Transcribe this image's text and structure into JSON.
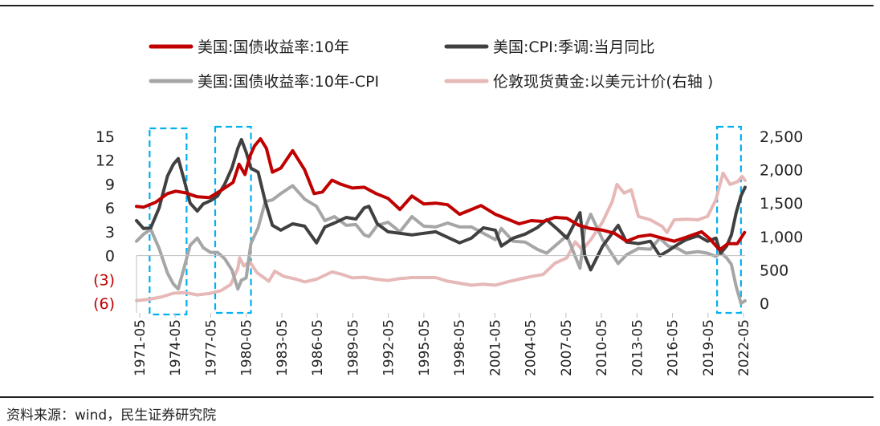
{
  "source": "资料来源：wind，民生证券研究院",
  "chart_data": {
    "type": "line",
    "legend": [
      {
        "label": "美国:国债收益率:10年",
        "color": "#c00000"
      },
      {
        "label": "美国:CPI:季调:当月同比",
        "color": "#404040"
      },
      {
        "label": "美国:国债收益率:10年-CPI",
        "color": "#a6a6a6"
      },
      {
        "label": "伦敦现货黄金:以美元计价(右轴 )",
        "color": "#e6b8b7"
      }
    ],
    "x_ticks": [
      "1971-05",
      "1974-05",
      "1977-05",
      "1980-05",
      "1983-05",
      "1986-05",
      "1989-05",
      "1992-05",
      "1995-05",
      "1998-05",
      "2001-05",
      "2004-05",
      "2007-05",
      "2010-05",
      "2013-05",
      "2016-05",
      "2019-05",
      "2022-05"
    ],
    "y_left": {
      "min": -6,
      "max": 15,
      "ticks": [
        "15",
        "12",
        "9",
        "6",
        "3",
        "0",
        "(3)",
        "(6)"
      ],
      "tick_values": [
        15,
        12,
        9,
        6,
        3,
        0,
        -3,
        -6
      ]
    },
    "y_right": {
      "min": 0,
      "max": 2500,
      "ticks": [
        "2,500",
        "2,000",
        "1,500",
        "1,000",
        "500",
        "0"
      ],
      "tick_values": [
        2500,
        2000,
        1500,
        1000,
        500,
        0
      ]
    },
    "highlight_ranges": [
      [
        1972.5,
        1975.6
      ],
      [
        1978.0,
        1981.0
      ],
      [
        2020.1,
        2022.1
      ]
    ],
    "series": [
      {
        "name": "美国:国债收益率:10年",
        "axis": "left",
        "color": "#c00000",
        "x": [
          1971.4,
          1972,
          1973,
          1974,
          1974.7,
          1975.5,
          1976.5,
          1977.5,
          1978.5,
          1979.5,
          1980.0,
          1980.5,
          1980.9,
          1981.3,
          1981.8,
          1982.3,
          1982.8,
          1983.5,
          1984.5,
          1985.5,
          1986.3,
          1987.0,
          1987.8,
          1988.5,
          1989.5,
          1990.5,
          1991.5,
          1992.5,
          1993.5,
          1994.5,
          1995.5,
          1996.5,
          1997.5,
          1998.5,
          1999.5,
          2000.3,
          2001.5,
          2002.5,
          2003.5,
          2004.5,
          2005.5,
          2006.5,
          2007.5,
          2008.5,
          2009.5,
          2010.5,
          2011.5,
          2012.5,
          2013.5,
          2014.5,
          2015.5,
          2016.5,
          2017.5,
          2018.8,
          2019.5,
          2020.3,
          2021.0,
          2021.8,
          2022.4
        ],
        "y": [
          6.2,
          6.1,
          6.7,
          7.8,
          8.1,
          7.9,
          7.4,
          7.3,
          8.2,
          9.2,
          11.5,
          10.2,
          12.5,
          13.8,
          14.7,
          13.5,
          10.5,
          11.0,
          13.2,
          10.8,
          7.8,
          8.0,
          9.5,
          9.0,
          8.5,
          8.6,
          7.8,
          7.2,
          5.8,
          7.5,
          6.5,
          6.6,
          6.4,
          5.2,
          5.8,
          6.3,
          5.2,
          4.6,
          4.0,
          4.4,
          4.3,
          4.8,
          4.7,
          3.8,
          3.4,
          3.2,
          2.8,
          1.8,
          2.4,
          2.6,
          2.2,
          1.8,
          2.3,
          3.0,
          2.1,
          0.7,
          1.5,
          1.5,
          2.9
        ]
      },
      {
        "name": "美国:CPI:季调:当月同比",
        "axis": "left",
        "color": "#404040",
        "x": [
          1971.4,
          1972.0,
          1972.6,
          1973.3,
          1974.0,
          1974.5,
          1974.9,
          1975.4,
          1975.9,
          1976.5,
          1977.0,
          1977.6,
          1978.2,
          1978.8,
          1979.4,
          1979.9,
          1980.2,
          1980.6,
          1981.0,
          1981.6,
          1982.2,
          1982.8,
          1983.5,
          1984.5,
          1985.5,
          1986.5,
          1987.2,
          1988.0,
          1989.0,
          1989.8,
          1990.5,
          1990.9,
          1991.6,
          1992.5,
          1993.5,
          1994.5,
          1995.5,
          1996.5,
          1997.5,
          1998.5,
          1999.5,
          2000.5,
          2001.5,
          2002.0,
          2003.0,
          2004.0,
          2005.0,
          2005.8,
          2006.8,
          2007.5,
          2008.6,
          2009.0,
          2009.5,
          2010.5,
          2011.8,
          2012.5,
          2013.5,
          2014.5,
          2015.3,
          2016.0,
          2016.8,
          2017.5,
          2018.5,
          2019.3,
          2020.0,
          2020.4,
          2020.9,
          2021.3,
          2021.7,
          2022.1,
          2022.45
        ],
        "y": [
          4.4,
          3.4,
          3.5,
          6.0,
          10.0,
          11.5,
          12.2,
          9.5,
          6.6,
          5.6,
          6.5,
          6.9,
          7.5,
          9.0,
          11.0,
          13.5,
          14.6,
          13.0,
          11.0,
          10.5,
          6.8,
          3.8,
          3.2,
          4.0,
          3.7,
          1.6,
          3.6,
          4.1,
          4.8,
          4.6,
          6.0,
          6.2,
          4.0,
          3.0,
          2.8,
          2.6,
          2.8,
          3.0,
          2.3,
          1.6,
          2.2,
          3.5,
          3.2,
          1.2,
          2.2,
          2.7,
          3.5,
          4.5,
          3.2,
          2.2,
          5.4,
          0.0,
          -1.8,
          1.2,
          3.8,
          1.7,
          1.5,
          1.8,
          0.0,
          0.6,
          1.4,
          2.0,
          2.5,
          1.8,
          2.2,
          0.3,
          1.2,
          2.6,
          5.4,
          7.5,
          8.6
        ]
      },
      {
        "name": "美国:国债收益率:10年-CPI",
        "axis": "left",
        "color": "#a6a6a6",
        "x": [
          1971.4,
          1972.0,
          1972.6,
          1973.3,
          1974.0,
          1974.5,
          1974.9,
          1975.4,
          1975.9,
          1976.5,
          1977.0,
          1977.6,
          1978.2,
          1978.8,
          1979.4,
          1979.9,
          1980.2,
          1980.6,
          1981.0,
          1981.6,
          1982.2,
          1982.8,
          1983.5,
          1984.5,
          1985.5,
          1986.5,
          1987.2,
          1988.0,
          1989.0,
          1989.8,
          1990.5,
          1990.9,
          1991.6,
          1992.5,
          1993.5,
          1994.5,
          1995.5,
          1996.5,
          1997.5,
          1998.5,
          1999.5,
          2000.5,
          2001.5,
          2002.0,
          2003.0,
          2004.0,
          2005.0,
          2005.8,
          2006.8,
          2007.5,
          2008.6,
          2009.0,
          2009.5,
          2010.5,
          2011.8,
          2012.5,
          2013.5,
          2014.5,
          2015.3,
          2016.0,
          2016.8,
          2017.5,
          2018.5,
          2019.3,
          2020.0,
          2020.4,
          2020.9,
          2021.3,
          2021.7,
          2022.1,
          2022.45
        ],
        "y": [
          1.8,
          2.7,
          3.3,
          0.9,
          -2.2,
          -3.6,
          -4.2,
          -1.5,
          1.3,
          2.2,
          1.0,
          0.4,
          0.4,
          -0.4,
          -1.8,
          -4.2,
          -3.1,
          -2.8,
          1.5,
          3.5,
          6.8,
          7.0,
          7.8,
          8.8,
          7.1,
          6.2,
          4.4,
          4.9,
          3.8,
          3.9,
          2.6,
          2.4,
          3.8,
          4.2,
          3.0,
          4.9,
          3.7,
          3.6,
          4.1,
          3.6,
          3.6,
          2.8,
          2.0,
          3.4,
          1.8,
          1.7,
          0.8,
          0.3,
          1.6,
          2.5,
          -1.6,
          3.4,
          5.2,
          2.0,
          -1.0,
          0.1,
          0.9,
          0.8,
          2.2,
          1.2,
          0.9,
          0.3,
          0.5,
          0.3,
          -0.1,
          0.4,
          -0.3,
          -1.1,
          -3.9,
          -6.0,
          -5.7
        ]
      },
      {
        "name": "伦敦现货黄金:以美元计价(右轴 )",
        "axis": "right",
        "color": "#e6b8b7",
        "x": [
          1971.4,
          1972.5,
          1973.5,
          1974.5,
          1975.5,
          1976.5,
          1977.5,
          1978.5,
          1979.3,
          1979.9,
          1980.05,
          1980.4,
          1980.9,
          1981.5,
          1982.5,
          1983.0,
          1983.8,
          1984.8,
          1985.5,
          1986.5,
          1987.8,
          1988.5,
          1989.5,
          1990.5,
          1991.5,
          1992.5,
          1993.5,
          1994.5,
          1995.5,
          1996.5,
          1997.5,
          1998.5,
          1999.5,
          2000.5,
          2001.5,
          2002.5,
          2003.5,
          2004.5,
          2005.5,
          2006.5,
          2007.5,
          2008.2,
          2008.8,
          2009.5,
          2010.5,
          2011.3,
          2011.7,
          2012.3,
          2012.9,
          2013.5,
          2014.5,
          2015.5,
          2015.9,
          2016.5,
          2017.5,
          2018.5,
          2019.3,
          2020.0,
          2020.6,
          2021.2,
          2021.8,
          2022.2,
          2022.45
        ],
        "y": [
          40,
          60,
          95,
          150,
          160,
          125,
          145,
          190,
          280,
          520,
          680,
          560,
          620,
          460,
          330,
          480,
          400,
          360,
          320,
          360,
          470,
          440,
          380,
          390,
          360,
          340,
          370,
          385,
          385,
          385,
          330,
          300,
          270,
          285,
          270,
          320,
          360,
          400,
          430,
          600,
          680,
          920,
          800,
          950,
          1220,
          1520,
          1780,
          1650,
          1700,
          1300,
          1250,
          1150,
          1060,
          1250,
          1260,
          1250,
          1300,
          1550,
          1950,
          1780,
          1820,
          1900,
          1840
        ]
      }
    ]
  }
}
